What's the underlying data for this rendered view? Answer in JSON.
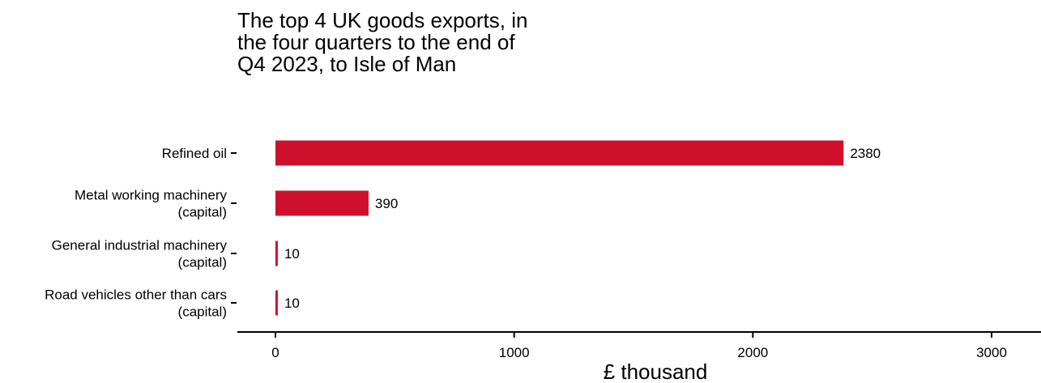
{
  "chart_data": {
    "type": "bar",
    "orientation": "horizontal",
    "title": "The top 4 UK goods exports, in the four quarters to the end of Q4 2023, to Isle of Man",
    "xlabel": "£ thousand",
    "ylabel": "",
    "categories": [
      [
        "Refined oil"
      ],
      [
        "Metal working machinery",
        "(capital)"
      ],
      [
        "General industrial machinery",
        "(capital)"
      ],
      [
        "Road vehicles other than cars",
        "(capital)"
      ]
    ],
    "values": [
      2380,
      390,
      10,
      10
    ],
    "value_labels": [
      "2380",
      "390",
      "10",
      "10"
    ],
    "xlim": [
      -160,
      3160
    ],
    "xticks": [
      0,
      1000,
      2000,
      3000
    ],
    "xtick_labels": [
      "0",
      "1000",
      "2000",
      "3000"
    ],
    "grid": false,
    "legend": "none",
    "bar_color": "#cf102d"
  }
}
